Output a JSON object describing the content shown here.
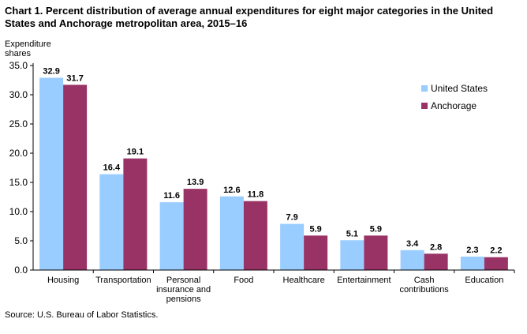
{
  "chart_data": {
    "type": "bar",
    "title": "Chart 1. Percent distribution  of average annual expenditures for eight major categories in the United States and Anchorage metropolitan area, 2015–16",
    "ylabel": [
      "Expenditure",
      "shares"
    ],
    "xlabel": "",
    "ylim": [
      0,
      35
    ],
    "yticks": [
      "0.0",
      "5.0",
      "10.0",
      "15.0",
      "20.0",
      "25.0",
      "30.0",
      "35.0"
    ],
    "grid": false,
    "legend_position": "top-right",
    "categories": [
      [
        "Housing"
      ],
      [
        "Transportation"
      ],
      [
        "Personal",
        "insurance and",
        "pensions"
      ],
      [
        "Food"
      ],
      [
        "Healthcare"
      ],
      [
        "Entertainment"
      ],
      [
        "Cash",
        "contributions"
      ],
      [
        "Education"
      ]
    ],
    "series": [
      {
        "name": "United States",
        "color": "#99ccff",
        "values": [
          32.9,
          16.4,
          11.6,
          12.6,
          7.9,
          5.1,
          3.4,
          2.3
        ],
        "labels": [
          "32.9",
          "16.4",
          "11.6",
          "12.6",
          "7.9",
          "5.1",
          "3.4",
          "2.3"
        ]
      },
      {
        "name": "Anchorage",
        "color": "#993366",
        "values": [
          31.7,
          19.1,
          13.9,
          11.8,
          5.9,
          5.9,
          2.8,
          2.2
        ],
        "labels": [
          "31.7",
          "19.1",
          "13.9",
          "11.8",
          "5.9",
          "5.9",
          "2.8",
          "2.2"
        ]
      }
    ],
    "source": "Source: U.S. Bureau of Labor Statistics."
  }
}
